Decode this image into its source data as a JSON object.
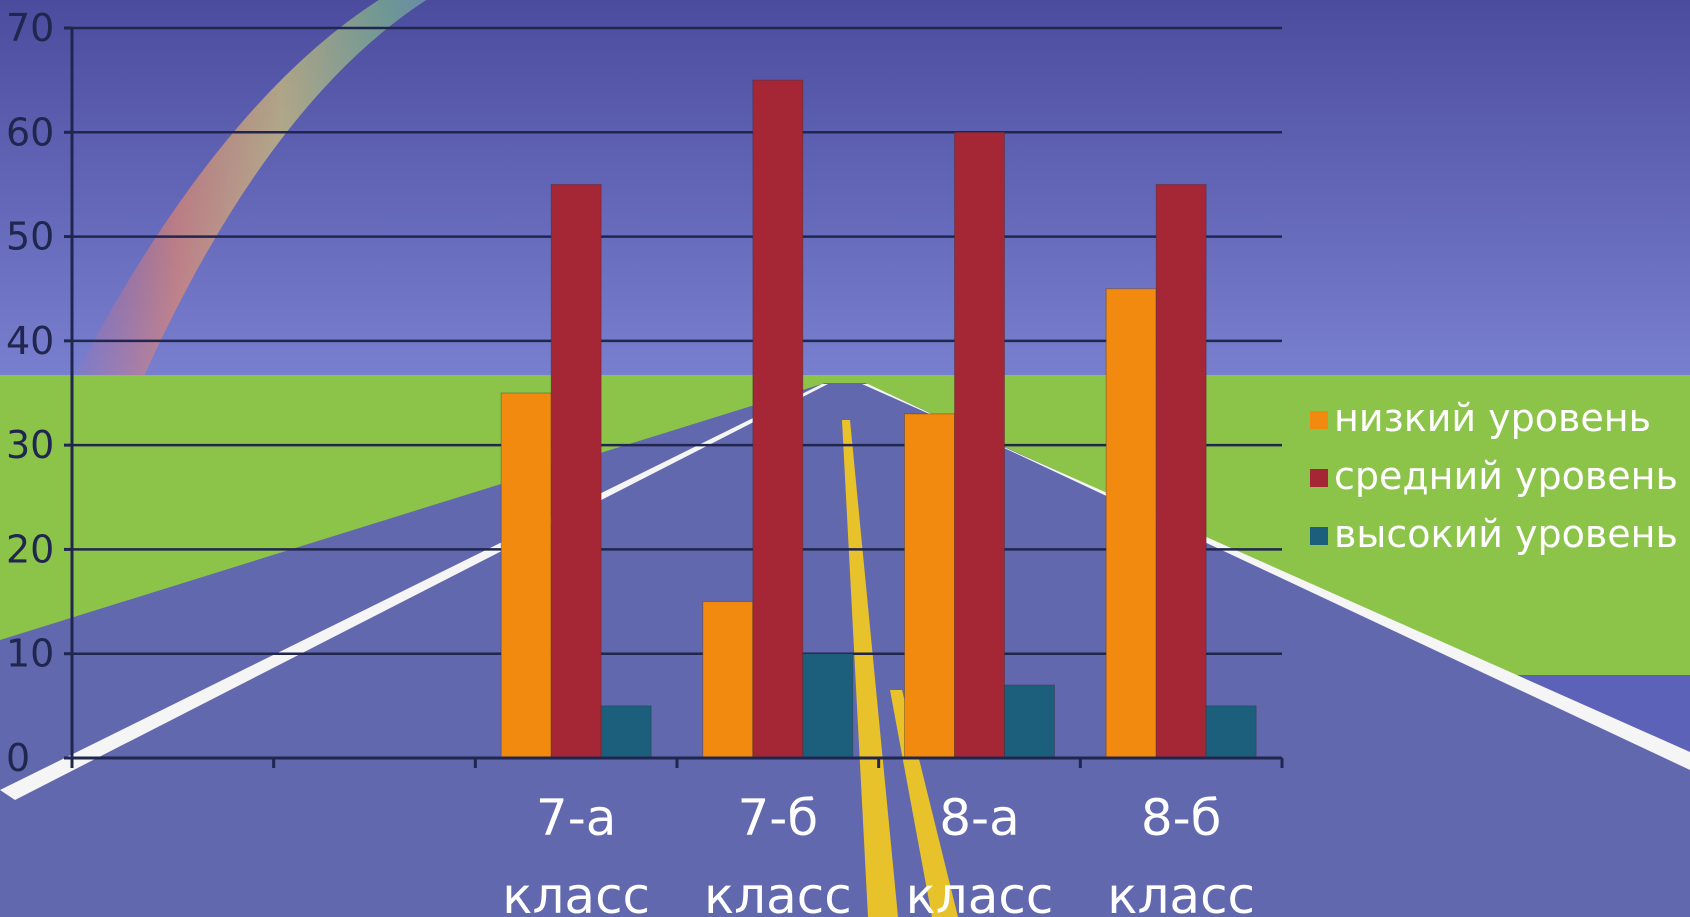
{
  "chart_data": {
    "type": "bar",
    "categories": [
      [
        "7-а",
        "класс"
      ],
      [
        "7-б",
        "класс"
      ],
      [
        "8-а",
        "класс"
      ],
      [
        "8-б",
        "класс"
      ]
    ],
    "category_slots": 6,
    "first_category_slot": 2,
    "series": [
      {
        "name": "низкий уровень",
        "color": "#f28a0f",
        "values": [
          35,
          15,
          33,
          45
        ]
      },
      {
        "name": "средний уровень",
        "color": "#a52635",
        "values": [
          55,
          65,
          60,
          55
        ]
      },
      {
        "name": "высокий уровень",
        "color": "#1b5f7c",
        "values": [
          5,
          10,
          7,
          5
        ]
      }
    ],
    "ylim": [
      0,
      70
    ],
    "yticks": [
      0,
      10,
      20,
      30,
      40,
      50,
      60,
      70
    ],
    "grid": true,
    "legend_position": "right",
    "title": "",
    "xlabel": "",
    "ylabel": ""
  },
  "colors": {
    "sky_top": "#4c4c9e",
    "sky_horizon": "#7a80d0",
    "field": "#8cc44a",
    "road": "#6268ae",
    "road_line": "#f5f5f5",
    "center_line": "#e8c22a",
    "gridline": "#20264e"
  }
}
